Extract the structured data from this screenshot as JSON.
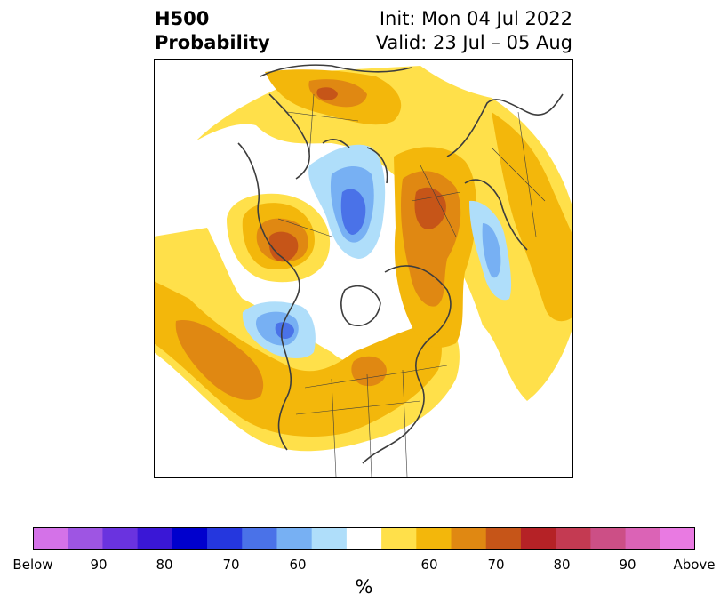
{
  "title": {
    "left_line1": "H500",
    "left_line2": "Probability",
    "right_line1": "Init: Mon 04 Jul 2022",
    "right_line2": "Valid: 23 Jul – 05 Aug"
  },
  "colorbar": {
    "colors": [
      "#d472e8",
      "#9e55e3",
      "#6a33df",
      "#3a17d6",
      "#0000cd",
      "#2537de",
      "#4a72e8",
      "#77b0f3",
      "#afdefa",
      "#ffffff",
      "#ffe04a",
      "#f3b70b",
      "#e08812",
      "#c65518",
      "#b52226",
      "#c43a52",
      "#cc4f86",
      "#db63b6",
      "#e97ae2"
    ],
    "tick_labels": [
      "Below",
      "90",
      "80",
      "70",
      "60",
      "60",
      "70",
      "80",
      "90",
      "Above"
    ],
    "unit": "%"
  },
  "map": {
    "palette": {
      "above_50": "#ffe04a",
      "above_60": "#f3b70b",
      "above_70": "#e08812",
      "above_80": "#c65518",
      "below_60": "#afdefa",
      "below_70": "#77b0f3",
      "below_80": "#4a72e8",
      "coast": "#3d3d3d"
    }
  }
}
